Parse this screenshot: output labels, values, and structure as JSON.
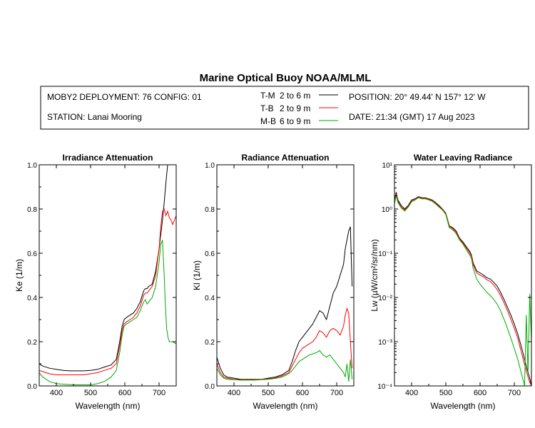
{
  "title": "Marine Optical Buoy NOAA/MLML",
  "info": {
    "deployment": "MOBY2 DEPLOYMENT: 76 CONFIG: 01",
    "station": "STATION: Lanai Mooring",
    "position": "POSITION: 20° 49.44' N   157° 12' W",
    "date": "DATE: 21:34 (GMT) 17 Aug 2023"
  },
  "legend": [
    {
      "code": "T-M",
      "range": "2 to 6  m",
      "color": "#000000"
    },
    {
      "code": "T-B",
      "range": "2 to 9  m",
      "color": "#ff0000"
    },
    {
      "code": "M-B",
      "range": "6 to 9  m",
      "color": "#00aa00"
    }
  ],
  "chart_data": [
    {
      "type": "line",
      "title": "Irradiance Attenuation",
      "xlabel": "Wavelength (nm)",
      "ylabel": "Ke  (1/m)",
      "xlim": [
        350,
        750
      ],
      "ylim": [
        0,
        1
      ],
      "xticks": [
        400,
        500,
        600,
        700
      ],
      "yticks": [
        0,
        0.2,
        0.4,
        0.6,
        0.8,
        1.0
      ],
      "ytick_labels": [
        "0.0",
        "0.2",
        "0.4",
        "0.6",
        "0.8",
        "1.0"
      ],
      "series": [
        {
          "name": "T-M",
          "color": "#000000",
          "x": [
            350,
            360,
            380,
            400,
            420,
            440,
            460,
            480,
            500,
            520,
            540,
            560,
            575,
            585,
            592,
            598,
            605,
            615,
            625,
            635,
            645,
            655,
            660,
            665,
            670,
            680,
            690,
            700,
            710,
            715,
            720,
            725
          ],
          "y": [
            0.1,
            0.09,
            0.08,
            0.075,
            0.07,
            0.068,
            0.068,
            0.068,
            0.07,
            0.075,
            0.085,
            0.095,
            0.12,
            0.2,
            0.27,
            0.3,
            0.31,
            0.32,
            0.33,
            0.35,
            0.38,
            0.43,
            0.44,
            0.44,
            0.45,
            0.46,
            0.52,
            0.62,
            0.75,
            0.83,
            0.92,
            1.0
          ]
        },
        {
          "name": "T-B",
          "color": "#ff0000",
          "x": [
            350,
            360,
            380,
            400,
            420,
            440,
            460,
            480,
            500,
            520,
            540,
            560,
            575,
            585,
            592,
            598,
            605,
            615,
            625,
            635,
            645,
            655,
            660,
            665,
            670,
            680,
            690,
            700,
            705,
            710,
            715,
            720,
            725,
            730,
            735,
            740,
            745,
            750
          ],
          "y": [
            0.07,
            0.065,
            0.055,
            0.05,
            0.05,
            0.05,
            0.05,
            0.05,
            0.055,
            0.06,
            0.07,
            0.08,
            0.1,
            0.18,
            0.25,
            0.28,
            0.29,
            0.3,
            0.31,
            0.33,
            0.36,
            0.41,
            0.42,
            0.42,
            0.43,
            0.45,
            0.5,
            0.62,
            0.72,
            0.79,
            0.8,
            0.77,
            0.79,
            0.76,
            0.75,
            0.73,
            0.75,
            0.77
          ]
        },
        {
          "name": "M-B",
          "color": "#00aa00",
          "x": [
            350,
            360,
            380,
            400,
            420,
            440,
            460,
            480,
            500,
            520,
            540,
            560,
            575,
            585,
            592,
            598,
            605,
            615,
            625,
            635,
            645,
            655,
            660,
            665,
            670,
            680,
            690,
            700,
            705,
            710,
            715,
            718,
            722,
            726,
            730,
            740,
            750
          ],
          "y": [
            0.06,
            0.04,
            0.02,
            0.01,
            0.008,
            0.006,
            0.005,
            0.005,
            0.005,
            0.01,
            0.02,
            0.04,
            0.07,
            0.15,
            0.23,
            0.27,
            0.28,
            0.29,
            0.3,
            0.31,
            0.34,
            0.38,
            0.39,
            0.37,
            0.38,
            0.4,
            0.45,
            0.56,
            0.64,
            0.66,
            0.5,
            0.38,
            0.26,
            0.22,
            0.2,
            0.2,
            0.19
          ]
        }
      ]
    },
    {
      "type": "line",
      "title": "Radiance Attenuation",
      "xlabel": "Wavelength (nm)",
      "ylabel": "Kl  (1/m)",
      "xlim": [
        350,
        750
      ],
      "ylim": [
        0,
        1
      ],
      "xticks": [
        400,
        500,
        600,
        700
      ],
      "yticks": [
        0,
        0.2,
        0.4,
        0.6,
        0.8,
        1.0
      ],
      "ytick_labels": [
        "0.0",
        "0.2",
        "0.4",
        "0.6",
        "0.8",
        "1.0"
      ],
      "series": [
        {
          "name": "T-M",
          "color": "#000000",
          "x": [
            350,
            360,
            370,
            380,
            400,
            420,
            440,
            460,
            480,
            500,
            520,
            540,
            560,
            570,
            580,
            590,
            600,
            610,
            620,
            630,
            640,
            650,
            660,
            670,
            680,
            690,
            700,
            710,
            720,
            725,
            730,
            735,
            740,
            745
          ],
          "y": [
            0.13,
            0.08,
            0.05,
            0.04,
            0.035,
            0.03,
            0.03,
            0.03,
            0.03,
            0.035,
            0.04,
            0.05,
            0.07,
            0.11,
            0.16,
            0.2,
            0.22,
            0.24,
            0.26,
            0.28,
            0.31,
            0.34,
            0.33,
            0.3,
            0.36,
            0.42,
            0.45,
            0.5,
            0.55,
            0.62,
            0.66,
            0.7,
            0.72,
            0.45
          ]
        },
        {
          "name": "T-B",
          "color": "#ff0000",
          "x": [
            350,
            360,
            370,
            380,
            400,
            420,
            440,
            460,
            480,
            500,
            520,
            540,
            560,
            570,
            580,
            590,
            600,
            610,
            620,
            630,
            640,
            650,
            660,
            670,
            680,
            690,
            700,
            710,
            720,
            725,
            730,
            735,
            740,
            745
          ],
          "y": [
            0.1,
            0.06,
            0.04,
            0.035,
            0.03,
            0.028,
            0.028,
            0.028,
            0.03,
            0.032,
            0.036,
            0.045,
            0.06,
            0.09,
            0.12,
            0.15,
            0.17,
            0.18,
            0.19,
            0.2,
            0.22,
            0.25,
            0.24,
            0.22,
            0.25,
            0.26,
            0.25,
            0.23,
            0.27,
            0.32,
            0.35,
            0.33,
            0.2,
            0.08
          ]
        },
        {
          "name": "M-B",
          "color": "#00aa00",
          "x": [
            350,
            360,
            370,
            380,
            400,
            420,
            440,
            460,
            480,
            500,
            520,
            540,
            560,
            570,
            580,
            590,
            600,
            610,
            620,
            630,
            640,
            650,
            660,
            670,
            680,
            690,
            700,
            710,
            720,
            725,
            730,
            735,
            740,
            745
          ],
          "y": [
            0.08,
            0.05,
            0.035,
            0.03,
            0.028,
            0.026,
            0.026,
            0.026,
            0.028,
            0.03,
            0.034,
            0.04,
            0.055,
            0.07,
            0.09,
            0.11,
            0.12,
            0.13,
            0.14,
            0.145,
            0.15,
            0.16,
            0.14,
            0.13,
            0.14,
            0.12,
            0.1,
            0.08,
            0.06,
            0.04,
            0.1,
            0.02,
            0.12,
            0.03
          ]
        }
      ]
    },
    {
      "type": "line",
      "title": "Water Leaving Radiance",
      "xlabel": "Wavelength (nm)",
      "ylabel": "Lw  (µW/cm²/sr/nm)",
      "yscale": "log",
      "xlim": [
        350,
        750
      ],
      "ylim": [
        0.0001,
        10
      ],
      "xticks": [
        400,
        500,
        600,
        700
      ],
      "yticks": [
        0.0001,
        0.001,
        0.01,
        0.1,
        1,
        10
      ],
      "ytick_labels": [
        "10⁻⁴",
        "10⁻³",
        "10⁻²",
        "10⁻¹",
        "10⁰",
        "10¹"
      ],
      "series": [
        {
          "name": "T-M",
          "color": "#000000",
          "x": [
            350,
            355,
            360,
            370,
            380,
            390,
            400,
            410,
            420,
            430,
            440,
            450,
            460,
            470,
            480,
            490,
            500,
            510,
            520,
            530,
            540,
            550,
            560,
            570,
            575,
            580,
            590,
            600,
            610,
            620,
            630,
            640,
            650,
            660,
            670,
            680,
            690,
            700,
            710,
            720,
            730,
            740,
            745,
            750
          ],
          "y": [
            1.5,
            2.4,
            1.6,
            1.2,
            1.0,
            1.2,
            1.6,
            1.7,
            1.9,
            1.8,
            1.8,
            1.7,
            1.6,
            1.4,
            1.2,
            1.0,
            0.8,
            0.42,
            0.38,
            0.32,
            0.22,
            0.18,
            0.14,
            0.11,
            0.09,
            0.06,
            0.04,
            0.036,
            0.032,
            0.028,
            0.026,
            0.022,
            0.018,
            0.013,
            0.009,
            0.006,
            0.004,
            0.0025,
            0.0015,
            0.0008,
            0.0004,
            0.0002,
            0.00015,
            0.0001
          ]
        },
        {
          "name": "T-B",
          "color": "#ff0000",
          "x": [
            350,
            355,
            360,
            370,
            380,
            390,
            400,
            410,
            420,
            430,
            440,
            450,
            460,
            470,
            480,
            490,
            500,
            510,
            520,
            530,
            540,
            550,
            560,
            570,
            575,
            580,
            590,
            600,
            610,
            620,
            630,
            640,
            650,
            660,
            670,
            680,
            690,
            700,
            710,
            720,
            730,
            740,
            745,
            750
          ],
          "y": [
            1.4,
            2.2,
            1.5,
            1.1,
            0.95,
            1.15,
            1.5,
            1.65,
            1.85,
            1.75,
            1.75,
            1.65,
            1.55,
            1.35,
            1.15,
            0.98,
            0.78,
            0.4,
            0.36,
            0.3,
            0.21,
            0.17,
            0.13,
            0.1,
            0.085,
            0.055,
            0.036,
            0.032,
            0.029,
            0.025,
            0.023,
            0.019,
            0.015,
            0.011,
            0.0075,
            0.005,
            0.0032,
            0.002,
            0.0012,
            0.0006,
            0.0003,
            0.00016,
            0.00012,
            0.0001
          ]
        },
        {
          "name": "M-B",
          "color": "#00aa00",
          "x": [
            350,
            355,
            360,
            370,
            380,
            390,
            400,
            410,
            420,
            430,
            440,
            450,
            460,
            470,
            480,
            490,
            500,
            510,
            520,
            530,
            540,
            550,
            560,
            570,
            575,
            580,
            590,
            600,
            610,
            620,
            630,
            640,
            650,
            660,
            670,
            680,
            690,
            700,
            710,
            720,
            730,
            735,
            740,
            745,
            750
          ],
          "y": [
            1.3,
            2.0,
            1.4,
            1.05,
            0.9,
            1.1,
            1.45,
            1.6,
            1.8,
            1.7,
            1.7,
            1.6,
            1.5,
            1.3,
            1.1,
            0.95,
            0.75,
            0.38,
            0.34,
            0.28,
            0.2,
            0.16,
            0.12,
            0.09,
            0.075,
            0.045,
            0.026,
            0.02,
            0.016,
            0.013,
            0.011,
            0.009,
            0.007,
            0.005,
            0.0032,
            0.002,
            0.0012,
            0.0007,
            0.0004,
            0.0002,
            0.0001,
            0.004,
            0.0002,
            0.012,
            0.001
          ]
        }
      ]
    }
  ]
}
